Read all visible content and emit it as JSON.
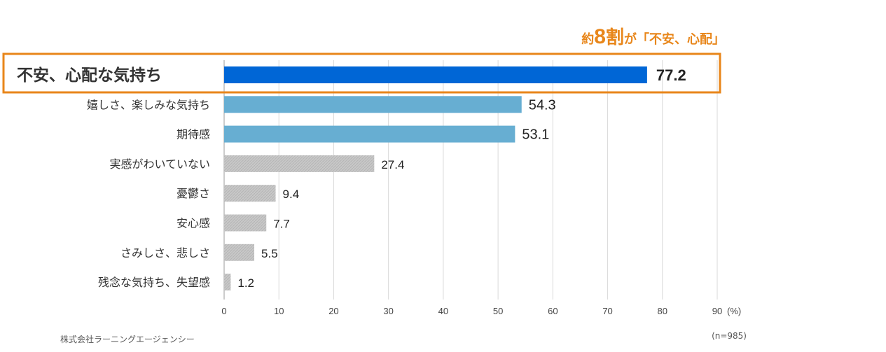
{
  "chart_data": {
    "type": "bar",
    "orientation": "horizontal",
    "categories": [
      "不安、心配な気持ち",
      "嬉しさ、楽しみな気持ち",
      "期待感",
      "実感がわいていない",
      "憂鬱さ",
      "安心感",
      "さみしさ、悲しさ",
      "残念な気持ち、失望感"
    ],
    "values": [
      77.2,
      54.3,
      53.1,
      27.4,
      9.4,
      7.7,
      5.5,
      1.2
    ],
    "value_labels": [
      "77.2",
      "54.3",
      "53.1",
      "27.4",
      "9.4",
      "7.7",
      "5.5",
      "1.2"
    ],
    "xlim": [
      0,
      90
    ],
    "x_ticks": [
      "0",
      "10",
      "20",
      "30",
      "40",
      "50",
      "60",
      "70",
      "80",
      "90"
    ],
    "x_unit": "(%)",
    "grid": true,
    "colors": {
      "highlight_bar": "#0066d6",
      "positive_bar": "#67aed2",
      "other_bar": "#c8c8c8",
      "accent": "#e8861a",
      "grid": "#d9d9d9"
    },
    "bar_groups": [
      "highlight",
      "positive",
      "positive",
      "other",
      "other",
      "other",
      "other",
      "other"
    ],
    "highlight_index": 0
  },
  "annotation": {
    "prefix": "約",
    "number": "8",
    "unit": "割",
    "suffix": "が「不安、心配」"
  },
  "sample_size": "(n=985)",
  "footer": "株式会社ラーニングエージェンシー"
}
